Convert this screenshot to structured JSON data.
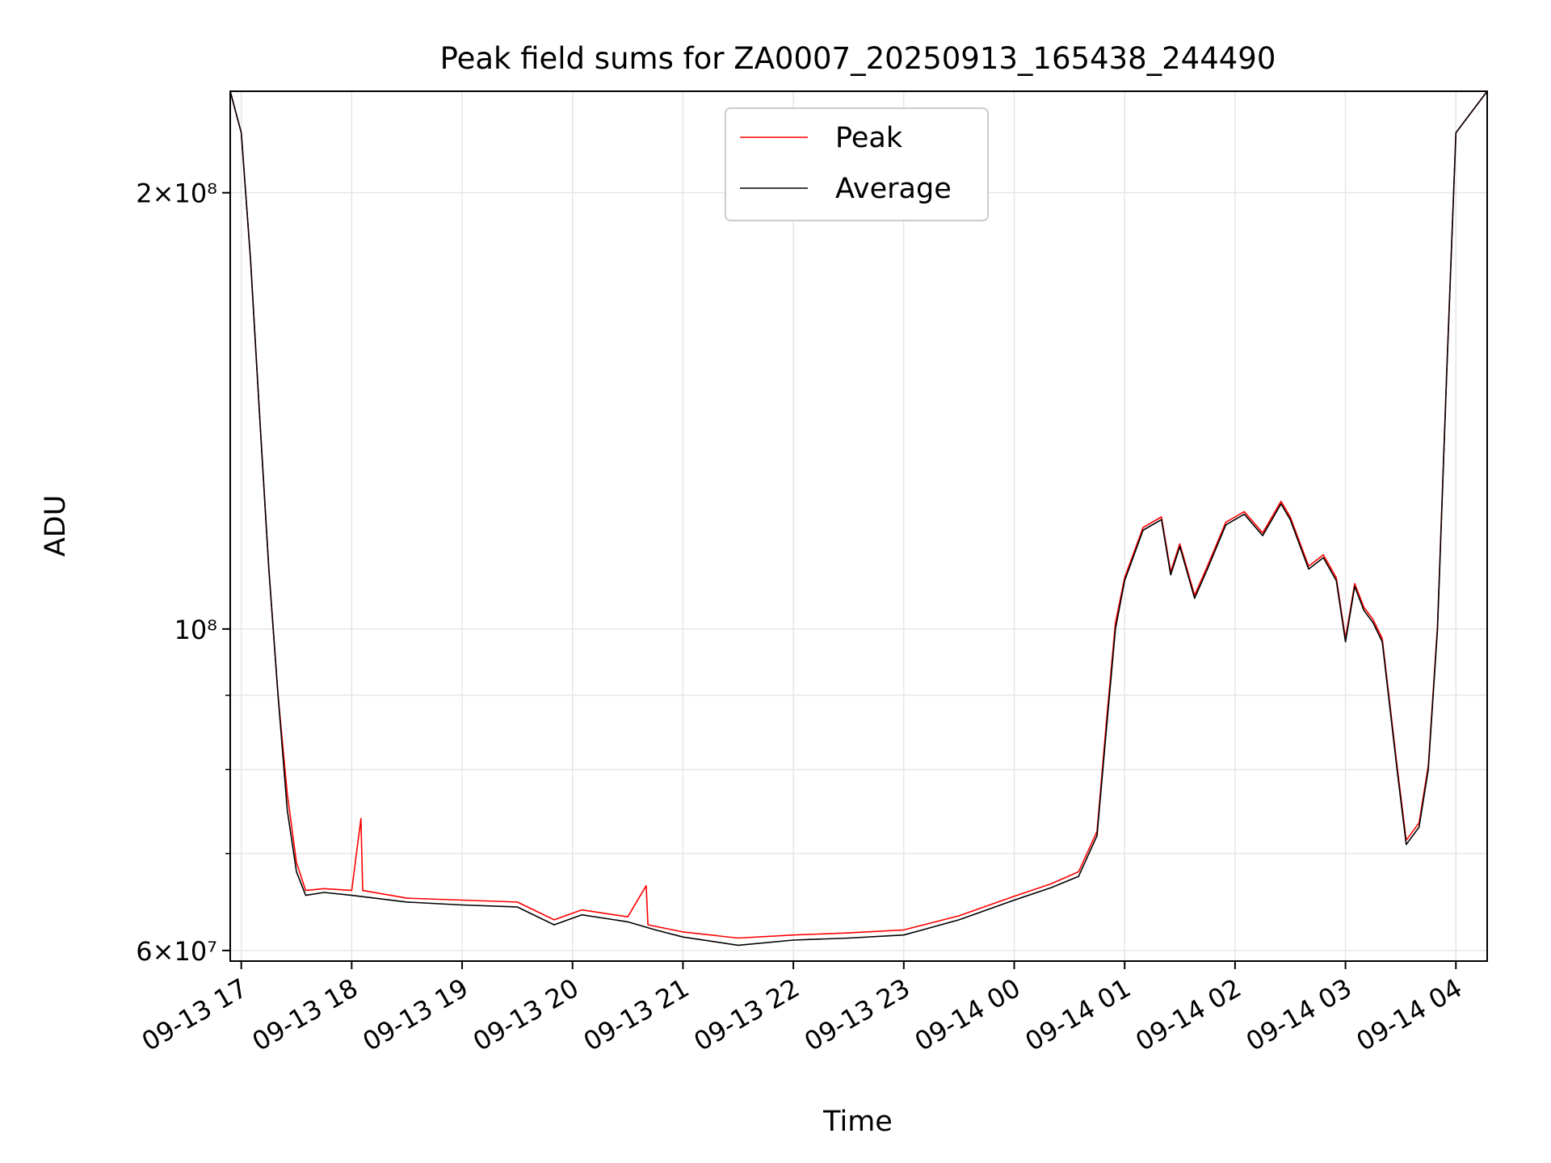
{
  "chart_data": {
    "type": "line",
    "title": "Peak field sums for ZA0007_20250913_165438_244490",
    "xlabel": "Time",
    "ylabel": "ADU",
    "y_scale": "log",
    "ylim": [
      59000000,
      235000000
    ],
    "xlim": [
      "2025-09-13 16:54",
      "2025-09-14 04:17"
    ],
    "grid": true,
    "legend_position": "upper-center",
    "x_ticks": [
      {
        "t": "2025-09-13 17:00",
        "label": "09-13 17"
      },
      {
        "t": "2025-09-13 18:00",
        "label": "09-13 18"
      },
      {
        "t": "2025-09-13 19:00",
        "label": "09-13 19"
      },
      {
        "t": "2025-09-13 20:00",
        "label": "09-13 20"
      },
      {
        "t": "2025-09-13 21:00",
        "label": "09-13 21"
      },
      {
        "t": "2025-09-13 22:00",
        "label": "09-13 22"
      },
      {
        "t": "2025-09-13 23:00",
        "label": "09-13 23"
      },
      {
        "t": "2025-09-14 00:00",
        "label": "09-14 00"
      },
      {
        "t": "2025-09-14 01:00",
        "label": "09-14 01"
      },
      {
        "t": "2025-09-14 02:00",
        "label": "09-14 02"
      },
      {
        "t": "2025-09-14 03:00",
        "label": "09-14 03"
      },
      {
        "t": "2025-09-14 04:00",
        "label": "09-14 04"
      }
    ],
    "y_ticks": [
      {
        "value": 200000000,
        "label": "2×10⁸"
      },
      {
        "value": 100000000,
        "label": "10⁸"
      },
      {
        "value": 60000000,
        "label": "6×10⁷"
      }
    ],
    "y_minor_ticks": [
      70000000,
      80000000,
      90000000
    ],
    "series": [
      {
        "name": "Average",
        "color": "#000000",
        "points": [
          [
            "2025-09-13 16:54",
            235000000
          ],
          [
            "2025-09-13 17:00",
            220000000
          ],
          [
            "2025-09-13 17:05",
            180000000
          ],
          [
            "2025-09-13 17:10",
            140000000
          ],
          [
            "2025-09-13 17:15",
            110000000
          ],
          [
            "2025-09-13 17:20",
            90000000
          ],
          [
            "2025-09-13 17:25",
            75000000
          ],
          [
            "2025-09-13 17:30",
            68000000
          ],
          [
            "2025-09-13 17:35",
            65500000
          ],
          [
            "2025-09-13 17:45",
            65800000
          ],
          [
            "2025-09-13 18:00",
            65500000
          ],
          [
            "2025-09-13 18:30",
            64800000
          ],
          [
            "2025-09-13 19:00",
            64500000
          ],
          [
            "2025-09-13 19:30",
            64300000
          ],
          [
            "2025-09-13 19:50",
            62500000
          ],
          [
            "2025-09-13 20:05",
            63500000
          ],
          [
            "2025-09-13 20:30",
            62800000
          ],
          [
            "2025-09-13 20:45",
            62000000
          ],
          [
            "2025-09-13 21:00",
            61300000
          ],
          [
            "2025-09-13 21:30",
            60500000
          ],
          [
            "2025-09-13 22:00",
            61000000
          ],
          [
            "2025-09-13 22:30",
            61200000
          ],
          [
            "2025-09-13 23:00",
            61500000
          ],
          [
            "2025-09-13 23:30",
            63000000
          ],
          [
            "2025-09-14 00:00",
            65000000
          ],
          [
            "2025-09-14 00:20",
            66300000
          ],
          [
            "2025-09-14 00:35",
            67500000
          ],
          [
            "2025-09-14 00:45",
            72000000
          ],
          [
            "2025-09-14 00:50",
            85000000
          ],
          [
            "2025-09-14 00:55",
            100000000
          ],
          [
            "2025-09-14 01:00",
            108000000
          ],
          [
            "2025-09-14 01:10",
            117000000
          ],
          [
            "2025-09-14 01:20",
            119000000
          ],
          [
            "2025-09-14 01:25",
            109000000
          ],
          [
            "2025-09-14 01:30",
            114000000
          ],
          [
            "2025-09-14 01:38",
            105000000
          ],
          [
            "2025-09-14 01:45",
            110000000
          ],
          [
            "2025-09-14 01:55",
            118000000
          ],
          [
            "2025-09-14 02:05",
            120000000
          ],
          [
            "2025-09-14 02:15",
            116000000
          ],
          [
            "2025-09-14 02:25",
            122000000
          ],
          [
            "2025-09-14 02:30",
            119000000
          ],
          [
            "2025-09-14 02:40",
            110000000
          ],
          [
            "2025-09-14 02:48",
            112000000
          ],
          [
            "2025-09-14 02:55",
            108000000
          ],
          [
            "2025-09-14 03:00",
            98000000
          ],
          [
            "2025-09-14 03:05",
            107000000
          ],
          [
            "2025-09-14 03:10",
            103000000
          ],
          [
            "2025-09-14 03:15",
            101000000
          ],
          [
            "2025-09-14 03:20",
            98000000
          ],
          [
            "2025-09-14 03:28",
            80000000
          ],
          [
            "2025-09-14 03:33",
            71000000
          ],
          [
            "2025-09-14 03:40",
            73000000
          ],
          [
            "2025-09-14 03:45",
            80000000
          ],
          [
            "2025-09-14 03:50",
            100000000
          ],
          [
            "2025-09-14 03:55",
            150000000
          ],
          [
            "2025-09-14 04:00",
            220000000
          ],
          [
            "2025-09-14 04:17",
            235000000
          ]
        ]
      },
      {
        "name": "Peak",
        "color": "#ff0000",
        "points": [
          [
            "2025-09-13 16:54",
            235000000
          ],
          [
            "2025-09-13 17:00",
            220000000
          ],
          [
            "2025-09-13 17:05",
            180000000
          ],
          [
            "2025-09-13 17:10",
            140000000
          ],
          [
            "2025-09-13 17:15",
            110000000
          ],
          [
            "2025-09-13 17:20",
            90000000
          ],
          [
            "2025-09-13 17:25",
            77000000
          ],
          [
            "2025-09-13 17:30",
            69000000
          ],
          [
            "2025-09-13 17:35",
            66000000
          ],
          [
            "2025-09-13 17:45",
            66200000
          ],
          [
            "2025-09-13 18:00",
            66000000
          ],
          [
            "2025-09-13 18:05",
            74000000
          ],
          [
            "2025-09-13 18:06",
            66000000
          ],
          [
            "2025-09-13 18:30",
            65200000
          ],
          [
            "2025-09-13 19:00",
            65000000
          ],
          [
            "2025-09-13 19:30",
            64800000
          ],
          [
            "2025-09-13 19:50",
            63000000
          ],
          [
            "2025-09-13 20:05",
            64000000
          ],
          [
            "2025-09-13 20:30",
            63300000
          ],
          [
            "2025-09-13 20:40",
            66500000
          ],
          [
            "2025-09-13 20:41",
            62500000
          ],
          [
            "2025-09-13 21:00",
            61800000
          ],
          [
            "2025-09-13 21:30",
            61200000
          ],
          [
            "2025-09-13 22:00",
            61500000
          ],
          [
            "2025-09-13 22:30",
            61700000
          ],
          [
            "2025-09-13 23:00",
            62000000
          ],
          [
            "2025-09-13 23:30",
            63400000
          ],
          [
            "2025-09-14 00:00",
            65400000
          ],
          [
            "2025-09-14 00:20",
            66700000
          ],
          [
            "2025-09-14 00:35",
            68000000
          ],
          [
            "2025-09-14 00:45",
            72500000
          ],
          [
            "2025-09-14 00:50",
            86000000
          ],
          [
            "2025-09-14 00:55",
            101000000
          ],
          [
            "2025-09-14 01:00",
            108500000
          ],
          [
            "2025-09-14 01:10",
            117500000
          ],
          [
            "2025-09-14 01:20",
            119500000
          ],
          [
            "2025-09-14 01:25",
            109500000
          ],
          [
            "2025-09-14 01:30",
            114500000
          ],
          [
            "2025-09-14 01:38",
            105500000
          ],
          [
            "2025-09-14 01:45",
            110500000
          ],
          [
            "2025-09-14 01:55",
            118500000
          ],
          [
            "2025-09-14 02:05",
            120500000
          ],
          [
            "2025-09-14 02:15",
            116500000
          ],
          [
            "2025-09-14 02:25",
            122500000
          ],
          [
            "2025-09-14 02:30",
            119500000
          ],
          [
            "2025-09-14 02:40",
            110500000
          ],
          [
            "2025-09-14 02:48",
            112500000
          ],
          [
            "2025-09-14 02:55",
            108500000
          ],
          [
            "2025-09-14 03:00",
            98500000
          ],
          [
            "2025-09-14 03:05",
            107500000
          ],
          [
            "2025-09-14 03:10",
            103500000
          ],
          [
            "2025-09-14 03:15",
            101500000
          ],
          [
            "2025-09-14 03:20",
            98500000
          ],
          [
            "2025-09-14 03:28",
            80500000
          ],
          [
            "2025-09-14 03:33",
            71500000
          ],
          [
            "2025-09-14 03:40",
            73500000
          ],
          [
            "2025-09-14 03:45",
            80500000
          ],
          [
            "2025-09-14 03:50",
            100500000
          ],
          [
            "2025-09-14 03:55",
            150500000
          ],
          [
            "2025-09-14 04:00",
            220000000
          ],
          [
            "2025-09-14 04:17",
            235000000
          ]
        ]
      }
    ]
  }
}
